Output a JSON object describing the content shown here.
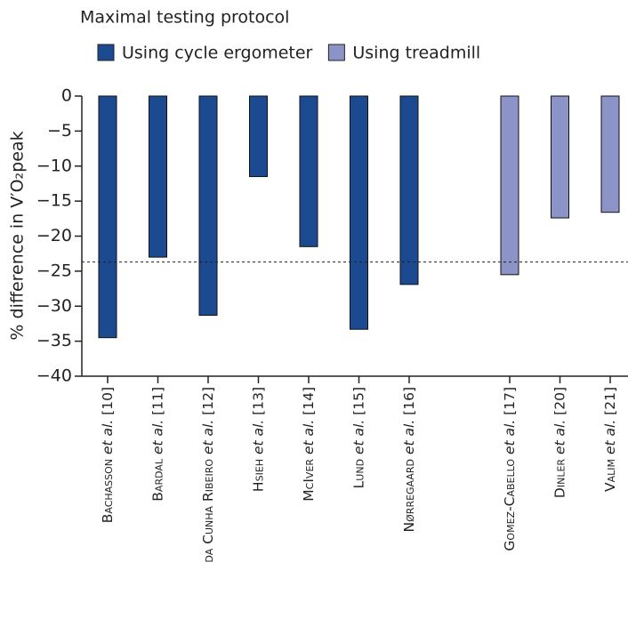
{
  "chart_data": {
    "type": "bar",
    "legend_title": "Maximal testing protocol",
    "ylabel": "% difference in V′O₂peak",
    "categories": [
      "Bachasson et al. [10]",
      "Bardal et al. [11]",
      "da Cunha Ribeiro et al. [12]",
      "Hsieh et al. [13]",
      "McIver et al. [14]",
      "Lund et al. [15]",
      "Nørregaard et al. [16]",
      null,
      "Gomez-Cabello et al. [17]",
      "Dinler et al. [20]",
      "Valim et al. [21]"
    ],
    "series": [
      {
        "name": "Using cycle ergometer",
        "color": "#1b4a90",
        "values": [
          -34.5,
          -23,
          -31.3,
          -11.5,
          -21.5,
          -33.3,
          -26.9,
          null,
          null,
          null,
          null
        ]
      },
      {
        "name": "Using treadmill",
        "color": "#8b93c7",
        "values": [
          null,
          null,
          null,
          null,
          null,
          null,
          null,
          null,
          -25.5,
          -17.4,
          -16.6
        ]
      }
    ],
    "reference_line": -23.7,
    "ylim": [
      -40,
      0
    ],
    "yticks": [
      0,
      -5,
      -10,
      -15,
      -20,
      -25,
      -30,
      -35,
      -40
    ],
    "legend": "top"
  }
}
